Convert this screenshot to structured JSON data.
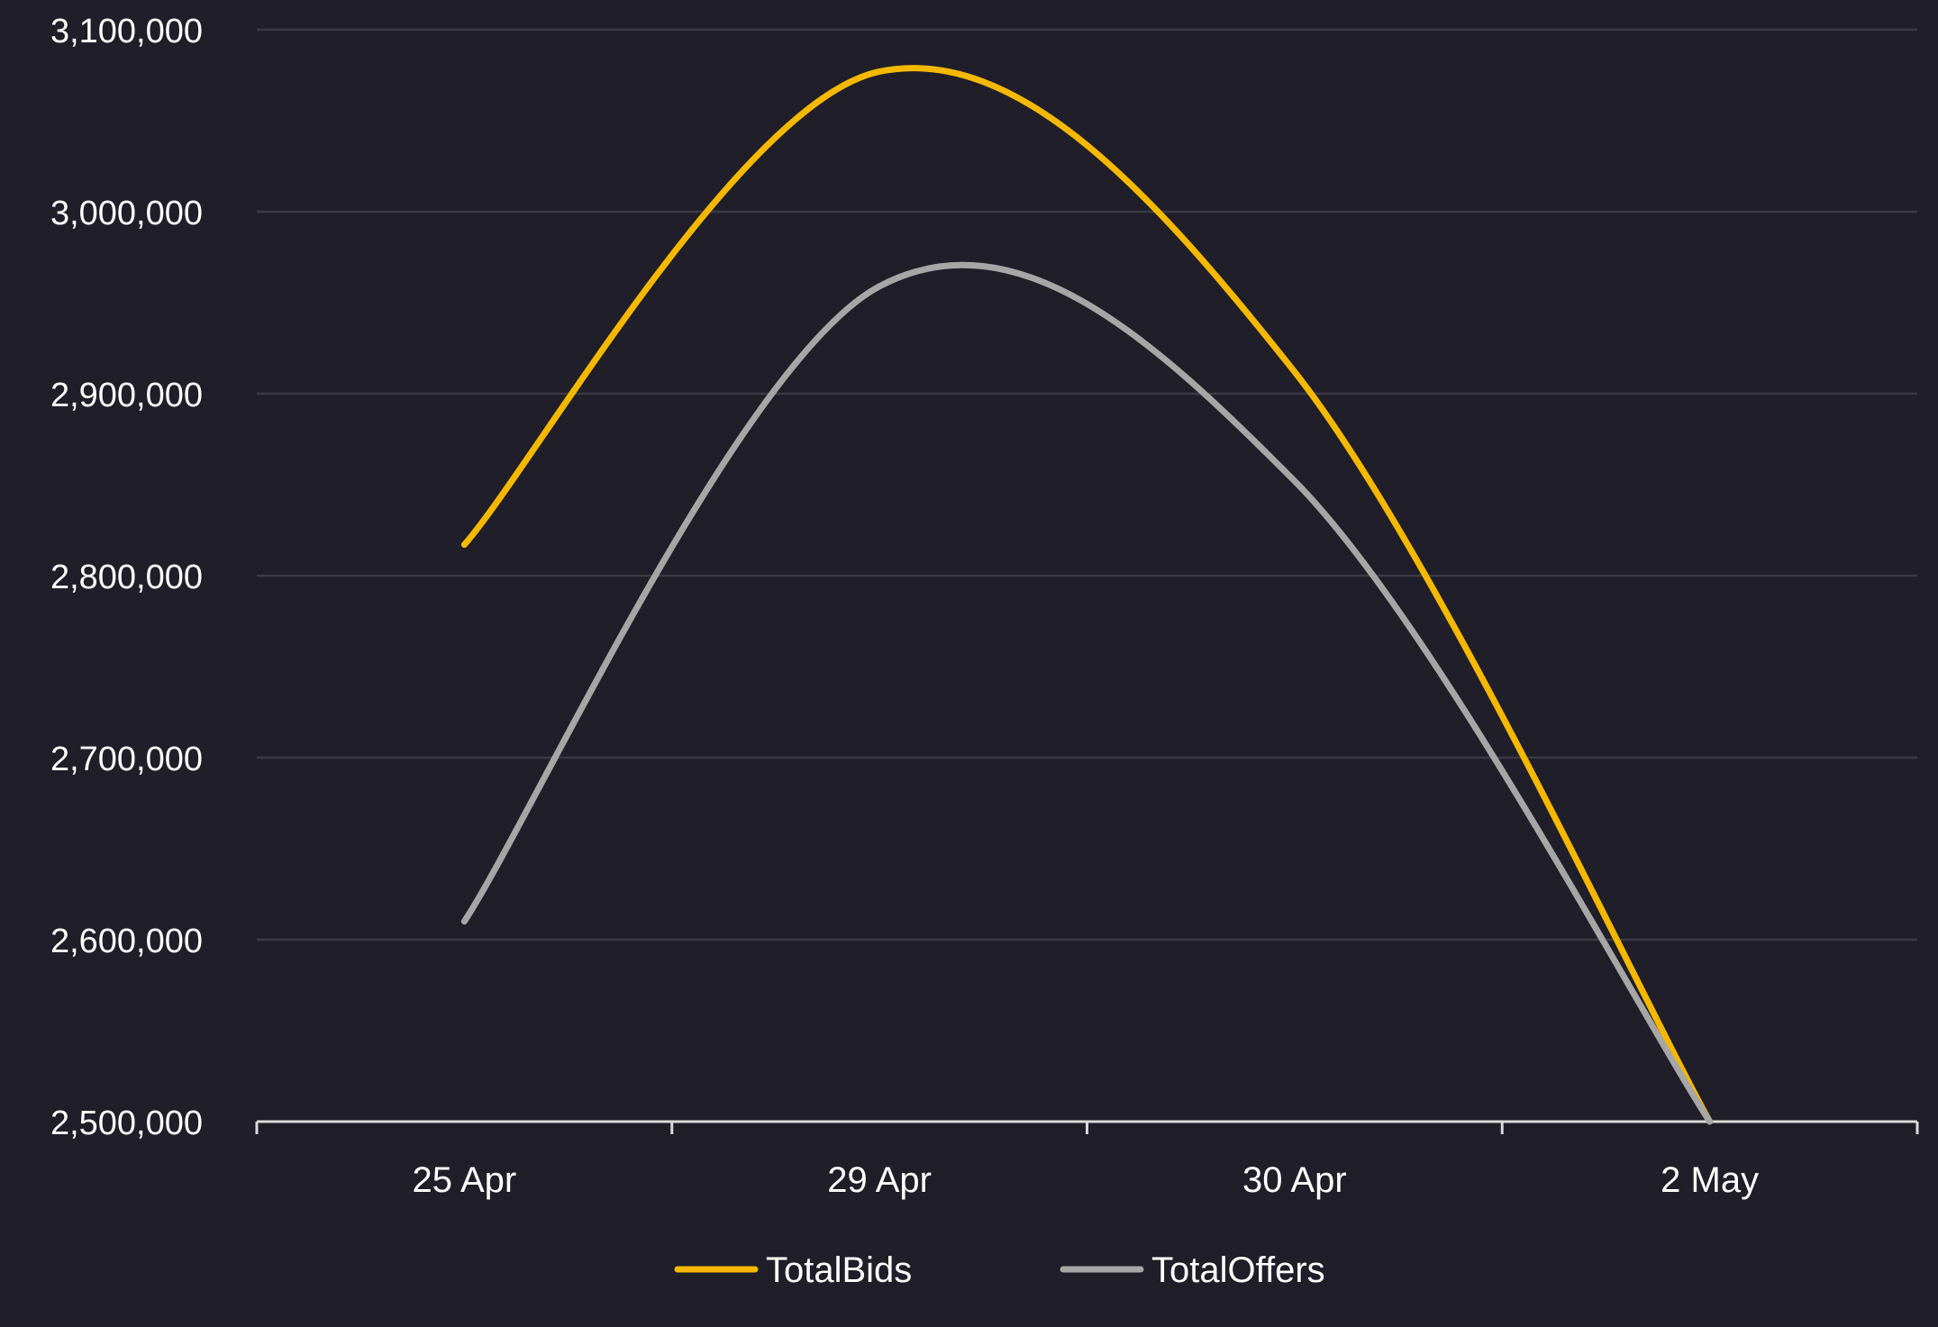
{
  "chart_data": {
    "type": "line",
    "categories": [
      "25 Apr",
      "29 Apr",
      "30 Apr",
      "2 May"
    ],
    "x_ticks": [
      "25 Apr",
      "29 Apr",
      "30 Apr",
      "2 May"
    ],
    "y_ticks": [
      "2,500,000",
      "2,600,000",
      "2,700,000",
      "2,800,000",
      "2,900,000",
      "3,000,000",
      "3,100,000"
    ],
    "ylim": [
      2500000,
      3100000
    ],
    "grid": true,
    "legend_position": "bottom",
    "series": [
      {
        "name": "TotalBids",
        "color": "#f5b800",
        "values": [
          2817000,
          3077000,
          2912000,
          2500000
        ]
      },
      {
        "name": "TotalOffers",
        "color": "#a6a6a6",
        "values": [
          2610000,
          2959000,
          2852000,
          2500000
        ]
      }
    ],
    "colors": {
      "background": "#1f1e29",
      "gridline": "#3b3a44",
      "axis": "#d9d9d9",
      "text": "#ffffff"
    }
  }
}
